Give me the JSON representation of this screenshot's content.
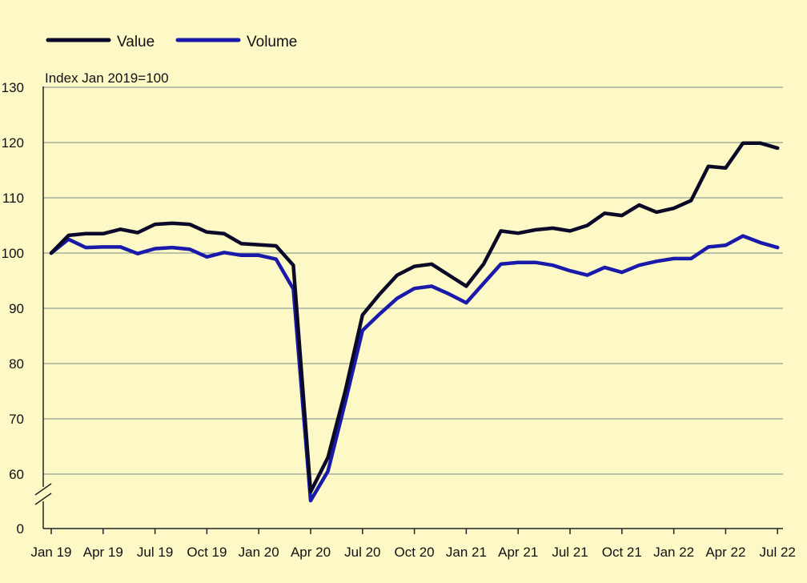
{
  "chart_data": {
    "type": "line",
    "title": "",
    "ylabel": "Index Jan 2019=100",
    "xlabel": "",
    "ylim": [
      55,
      130
    ],
    "y_ticks": [
      60,
      70,
      80,
      90,
      100,
      110,
      120,
      130
    ],
    "y_zero_label": "0",
    "axis_break": true,
    "grid": "horizontal",
    "legend_position": "top-left",
    "x": [
      "Jan 19",
      "Feb 19",
      "Mar 19",
      "Apr 19",
      "May 19",
      "Jun 19",
      "Jul 19",
      "Aug 19",
      "Sep 19",
      "Oct 19",
      "Nov 19",
      "Dec 19",
      "Jan 20",
      "Feb 20",
      "Mar 20",
      "Apr 20",
      "May 20",
      "Jun 20",
      "Jul 20",
      "Aug 20",
      "Sep 20",
      "Oct 20",
      "Nov 20",
      "Dec 20",
      "Jan 21",
      "Feb 21",
      "Mar 21",
      "Apr 21",
      "May 21",
      "Jun 21",
      "Jul 21",
      "Aug 21",
      "Sep 21",
      "Oct 21",
      "Nov 21",
      "Dec 21",
      "Jan 22",
      "Feb 22",
      "Mar 22",
      "Apr 22",
      "May 22",
      "Jun 22",
      "Jul 22"
    ],
    "x_tick_labels": [
      "Jan 19",
      "Apr 19",
      "Jul 19",
      "Oct 19",
      "Jan 20",
      "Apr 20",
      "Jul 20",
      "Oct 20",
      "Jan 21",
      "Apr 21",
      "Jul 21",
      "Oct 21",
      "Jan 22",
      "Apr 22",
      "Jul 22"
    ],
    "series": [
      {
        "name": "Value",
        "color": "#0a0a28",
        "values": [
          100.0,
          103.2,
          103.5,
          103.5,
          104.3,
          103.7,
          105.2,
          105.4,
          105.2,
          103.8,
          103.5,
          101.7,
          101.5,
          101.3,
          97.8,
          56.8,
          63.0,
          75.0,
          88.8,
          92.6,
          96.0,
          97.6,
          98.0,
          96.0,
          94.0,
          98.0,
          104.0,
          103.6,
          104.2,
          104.5,
          104.0,
          105.0,
          107.2,
          106.8,
          108.7,
          107.4,
          108.1,
          109.5,
          115.7,
          115.4,
          119.9,
          119.9,
          119.0
        ]
      },
      {
        "name": "Volume",
        "color": "#1a1aaa",
        "values": [
          100.0,
          102.5,
          101.0,
          101.1,
          101.1,
          99.9,
          100.8,
          101.0,
          100.7,
          99.3,
          100.1,
          99.6,
          99.6,
          98.9,
          93.5,
          55.2,
          60.5,
          73.0,
          86.0,
          89.0,
          91.8,
          93.6,
          94.0,
          92.6,
          91.0,
          94.5,
          98.0,
          98.3,
          98.3,
          97.8,
          96.8,
          96.0,
          97.4,
          96.5,
          97.8,
          98.5,
          99.0,
          99.0,
          101.1,
          101.4,
          103.1,
          101.9,
          101.0
        ]
      }
    ]
  }
}
